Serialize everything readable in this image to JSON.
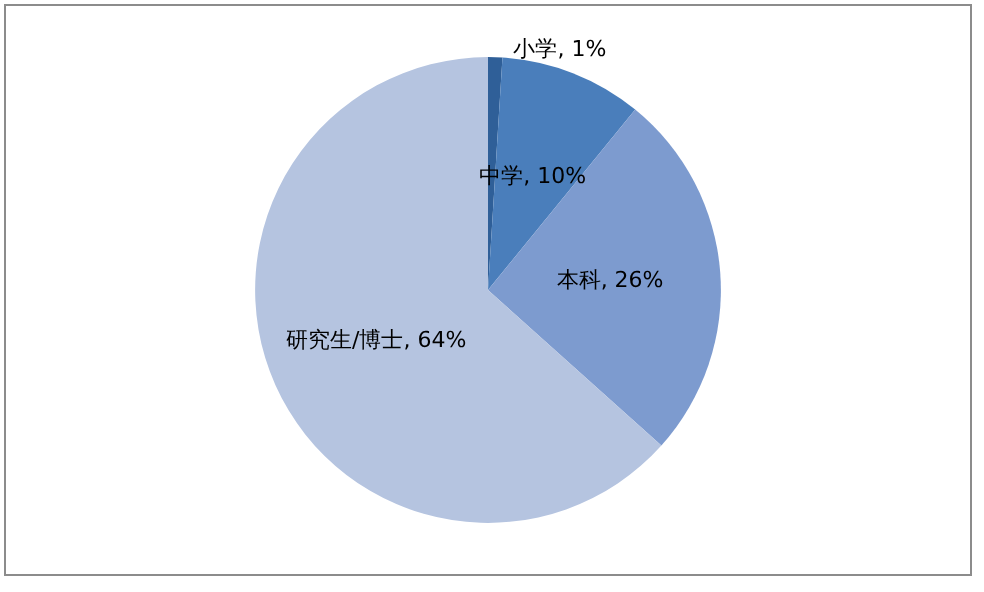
{
  "chart_data": {
    "type": "pie",
    "categories": [
      "小学",
      "中学",
      "本科",
      "研究生/博士"
    ],
    "values": [
      1,
      10,
      26,
      64
    ],
    "colors": [
      "#2f5f98",
      "#4a7ebb",
      "#7d9bcf",
      "#b5c4e0"
    ],
    "value_labels": [
      "1%",
      "10%",
      "26%",
      "64%"
    ]
  }
}
